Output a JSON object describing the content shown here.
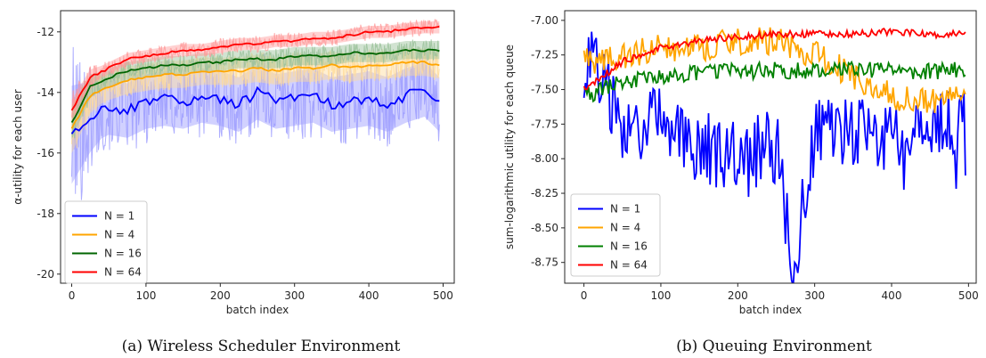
{
  "chart_data": [
    {
      "type": "line",
      "caption": "(a) Wireless Scheduler Environment",
      "xlabel": "batch index",
      "ylabel": "α-utility for each user",
      "xlim": [
        -15,
        515
      ],
      "ylim": [
        -20.3,
        -11.3
      ],
      "x_ticks": [
        0,
        100,
        200,
        300,
        400,
        500
      ],
      "y_ticks": [
        -20,
        -18,
        -16,
        -14,
        -12
      ],
      "legend": "lower-left",
      "shaded_band_around_each_mean_line": true,
      "series": [
        {
          "name": "N = 1",
          "color": "#0000ff",
          "x": [
            0,
            25,
            50,
            75,
            100,
            125,
            150,
            175,
            200,
            225,
            250,
            275,
            300,
            325,
            350,
            375,
            400,
            425,
            450,
            475,
            495
          ],
          "values": [
            -15.4,
            -14.8,
            -14.5,
            -14.6,
            -14.3,
            -14.2,
            -14.3,
            -14.1,
            -14.2,
            -14.4,
            -14.0,
            -14.3,
            -14.2,
            -14.1,
            -14.4,
            -14.3,
            -14.2,
            -14.4,
            -14.1,
            -13.9,
            -14.4
          ]
        },
        {
          "name": "N = 4",
          "color": "#ffa500",
          "x": [
            0,
            25,
            50,
            75,
            100,
            125,
            150,
            175,
            200,
            225,
            250,
            275,
            300,
            325,
            350,
            375,
            400,
            425,
            450,
            475,
            495
          ],
          "values": [
            -15.2,
            -14.1,
            -13.8,
            -13.6,
            -13.5,
            -13.4,
            -13.4,
            -13.3,
            -13.3,
            -13.3,
            -13.2,
            -13.3,
            -13.2,
            -13.2,
            -13.1,
            -13.2,
            -13.1,
            -13.1,
            -13.0,
            -13.0,
            -13.1
          ]
        },
        {
          "name": "N = 16",
          "color": "#006400",
          "x": [
            0,
            25,
            50,
            75,
            100,
            125,
            150,
            175,
            200,
            225,
            250,
            275,
            300,
            325,
            350,
            375,
            400,
            425,
            450,
            475,
            495
          ],
          "values": [
            -15.0,
            -13.8,
            -13.5,
            -13.3,
            -13.2,
            -13.1,
            -13.1,
            -13.0,
            -13.0,
            -12.9,
            -12.9,
            -12.9,
            -12.8,
            -12.8,
            -12.8,
            -12.7,
            -12.7,
            -12.7,
            -12.6,
            -12.6,
            -12.6
          ]
        },
        {
          "name": "N = 64",
          "color": "#ff0000",
          "x": [
            0,
            25,
            50,
            75,
            100,
            125,
            150,
            175,
            200,
            225,
            250,
            275,
            300,
            325,
            350,
            375,
            400,
            425,
            450,
            475,
            495
          ],
          "values": [
            -14.6,
            -13.5,
            -13.2,
            -12.9,
            -12.8,
            -12.7,
            -12.6,
            -12.6,
            -12.5,
            -12.4,
            -12.4,
            -12.3,
            -12.3,
            -12.2,
            -12.2,
            -12.1,
            -12.0,
            -12.0,
            -11.9,
            -11.85,
            -11.85
          ]
        }
      ]
    },
    {
      "type": "line",
      "caption": "(b) Queuing Environment",
      "xlabel": "batch index",
      "ylabel": "sum-logarithmic utility for each queue",
      "xlim": [
        -25,
        510
      ],
      "ylim": [
        -8.9,
        -6.93
      ],
      "x_ticks": [
        0,
        100,
        200,
        300,
        400,
        500
      ],
      "y_ticks": [
        -8.75,
        -8.5,
        -8.25,
        -8.0,
        -7.75,
        -7.5,
        -7.25,
        -7.0
      ],
      "y_tick_labels": [
        "-8.75",
        "-8.50",
        "-8.25",
        "-8.00",
        "-7.75",
        "-7.50",
        "-7.25",
        "-7.00"
      ],
      "legend": "lower-left",
      "series": [
        {
          "name": "N = 1",
          "color": "#0000ff",
          "mean": -7.85,
          "noise": 0.28,
          "x": [
            0,
            10,
            50,
            100,
            150,
            200,
            250,
            275,
            300,
            350,
            400,
            450,
            495
          ],
          "values": [
            -7.65,
            -7.2,
            -7.8,
            -7.75,
            -7.9,
            -8.0,
            -7.9,
            -8.75,
            -7.85,
            -7.8,
            -7.9,
            -7.8,
            -7.7
          ]
        },
        {
          "name": "N = 4",
          "color": "#ffa500",
          "mean": -7.3,
          "noise": 0.1,
          "x": [
            0,
            50,
            100,
            150,
            200,
            250,
            300,
            350,
            400,
            450,
            495
          ],
          "values": [
            -7.3,
            -7.25,
            -7.2,
            -7.2,
            -7.15,
            -7.15,
            -7.25,
            -7.4,
            -7.55,
            -7.6,
            -7.55
          ]
        },
        {
          "name": "N = 16",
          "color": "#008000",
          "mean": -7.38,
          "noise": 0.06,
          "x": [
            0,
            50,
            100,
            150,
            200,
            250,
            300,
            350,
            400,
            450,
            495
          ],
          "values": [
            -7.55,
            -7.45,
            -7.4,
            -7.38,
            -7.37,
            -7.36,
            -7.37,
            -7.36,
            -7.36,
            -7.37,
            -7.36
          ]
        },
        {
          "name": "N = 64",
          "color": "#ff0000",
          "mean": -7.12,
          "noise": 0.025,
          "x": [
            0,
            25,
            50,
            75,
            100,
            150,
            200,
            250,
            300,
            350,
            400,
            450,
            495
          ],
          "values": [
            -7.5,
            -7.4,
            -7.3,
            -7.25,
            -7.2,
            -7.15,
            -7.12,
            -7.1,
            -7.1,
            -7.1,
            -7.08,
            -7.1,
            -7.1
          ]
        }
      ]
    }
  ]
}
